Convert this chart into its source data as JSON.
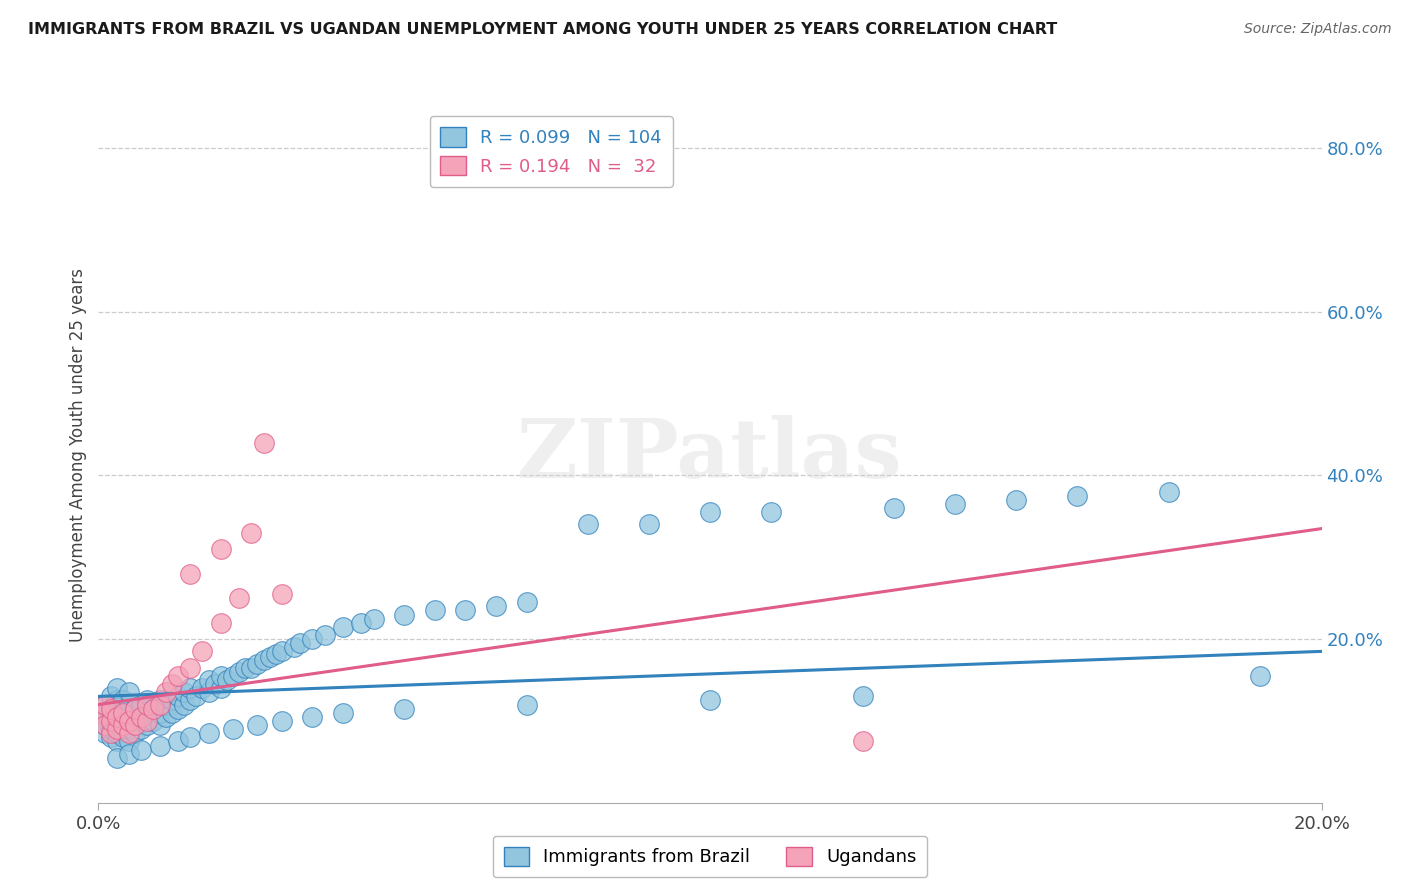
{
  "title": "IMMIGRANTS FROM BRAZIL VS UGANDAN UNEMPLOYMENT AMONG YOUTH UNDER 25 YEARS CORRELATION CHART",
  "source": "Source: ZipAtlas.com",
  "ylabel": "Unemployment Among Youth under 25 years",
  "xlim": [
    0.0,
    0.2
  ],
  "ylim": [
    0.0,
    0.85
  ],
  "ytick_right_labels": [
    "80.0%",
    "60.0%",
    "40.0%",
    "20.0%"
  ],
  "ytick_right_values": [
    0.8,
    0.6,
    0.4,
    0.2
  ],
  "blue_color": "#92c5de",
  "pink_color": "#f4a3b8",
  "blue_line_color": "#3182bd",
  "pink_line_color": "#e05c8a",
  "legend_R1": "0.099",
  "legend_N1": "104",
  "legend_R2": "0.194",
  "legend_N2": "32",
  "watermark": "ZIPatlas",
  "blue_label": "Immigrants from Brazil",
  "pink_label": "Ugandans",
  "blue_trend_x": [
    0.0,
    0.2
  ],
  "blue_trend_y": [
    0.13,
    0.185
  ],
  "pink_trend_x": [
    0.0,
    0.2
  ],
  "pink_trend_y": [
    0.12,
    0.335
  ],
  "blue_scatter_x": [
    0.0005,
    0.001,
    0.001,
    0.001,
    0.001,
    0.002,
    0.002,
    0.002,
    0.002,
    0.002,
    0.003,
    0.003,
    0.003,
    0.003,
    0.003,
    0.003,
    0.004,
    0.004,
    0.004,
    0.004,
    0.005,
    0.005,
    0.005,
    0.005,
    0.005,
    0.006,
    0.006,
    0.006,
    0.007,
    0.007,
    0.007,
    0.008,
    0.008,
    0.008,
    0.009,
    0.009,
    0.01,
    0.01,
    0.01,
    0.011,
    0.011,
    0.012,
    0.012,
    0.013,
    0.013,
    0.014,
    0.014,
    0.015,
    0.015,
    0.016,
    0.017,
    0.018,
    0.018,
    0.019,
    0.02,
    0.02,
    0.021,
    0.022,
    0.023,
    0.024,
    0.025,
    0.026,
    0.027,
    0.028,
    0.029,
    0.03,
    0.032,
    0.033,
    0.035,
    0.037,
    0.04,
    0.043,
    0.045,
    0.05,
    0.055,
    0.06,
    0.065,
    0.07,
    0.08,
    0.09,
    0.1,
    0.11,
    0.13,
    0.14,
    0.15,
    0.16,
    0.175,
    0.19,
    0.003,
    0.005,
    0.007,
    0.01,
    0.013,
    0.015,
    0.018,
    0.022,
    0.026,
    0.03,
    0.035,
    0.04,
    0.05,
    0.07,
    0.1,
    0.125
  ],
  "blue_scatter_y": [
    0.1,
    0.085,
    0.095,
    0.11,
    0.12,
    0.08,
    0.09,
    0.1,
    0.115,
    0.13,
    0.075,
    0.085,
    0.095,
    0.11,
    0.125,
    0.14,
    0.08,
    0.095,
    0.11,
    0.125,
    0.075,
    0.09,
    0.105,
    0.12,
    0.135,
    0.085,
    0.1,
    0.115,
    0.09,
    0.105,
    0.12,
    0.095,
    0.11,
    0.125,
    0.1,
    0.115,
    0.095,
    0.11,
    0.125,
    0.105,
    0.12,
    0.11,
    0.125,
    0.115,
    0.13,
    0.12,
    0.135,
    0.125,
    0.14,
    0.13,
    0.14,
    0.135,
    0.15,
    0.145,
    0.14,
    0.155,
    0.15,
    0.155,
    0.16,
    0.165,
    0.165,
    0.17,
    0.175,
    0.178,
    0.182,
    0.185,
    0.19,
    0.195,
    0.2,
    0.205,
    0.215,
    0.22,
    0.225,
    0.23,
    0.235,
    0.235,
    0.24,
    0.245,
    0.34,
    0.34,
    0.355,
    0.355,
    0.36,
    0.365,
    0.37,
    0.375,
    0.38,
    0.155,
    0.055,
    0.06,
    0.065,
    0.07,
    0.075,
    0.08,
    0.085,
    0.09,
    0.095,
    0.1,
    0.105,
    0.11,
    0.115,
    0.12,
    0.125,
    0.13
  ],
  "pink_scatter_x": [
    0.0005,
    0.001,
    0.001,
    0.002,
    0.002,
    0.002,
    0.003,
    0.003,
    0.004,
    0.004,
    0.005,
    0.005,
    0.006,
    0.006,
    0.007,
    0.008,
    0.008,
    0.009,
    0.01,
    0.011,
    0.012,
    0.013,
    0.015,
    0.017,
    0.02,
    0.023,
    0.027,
    0.015,
    0.02,
    0.025,
    0.03,
    0.125
  ],
  "pink_scatter_y": [
    0.11,
    0.095,
    0.12,
    0.085,
    0.1,
    0.115,
    0.09,
    0.105,
    0.095,
    0.11,
    0.085,
    0.1,
    0.095,
    0.115,
    0.105,
    0.1,
    0.12,
    0.115,
    0.12,
    0.135,
    0.145,
    0.155,
    0.165,
    0.185,
    0.22,
    0.25,
    0.44,
    0.28,
    0.31,
    0.33,
    0.255,
    0.075
  ],
  "background_color": "#ffffff",
  "grid_color": "#cccccc"
}
